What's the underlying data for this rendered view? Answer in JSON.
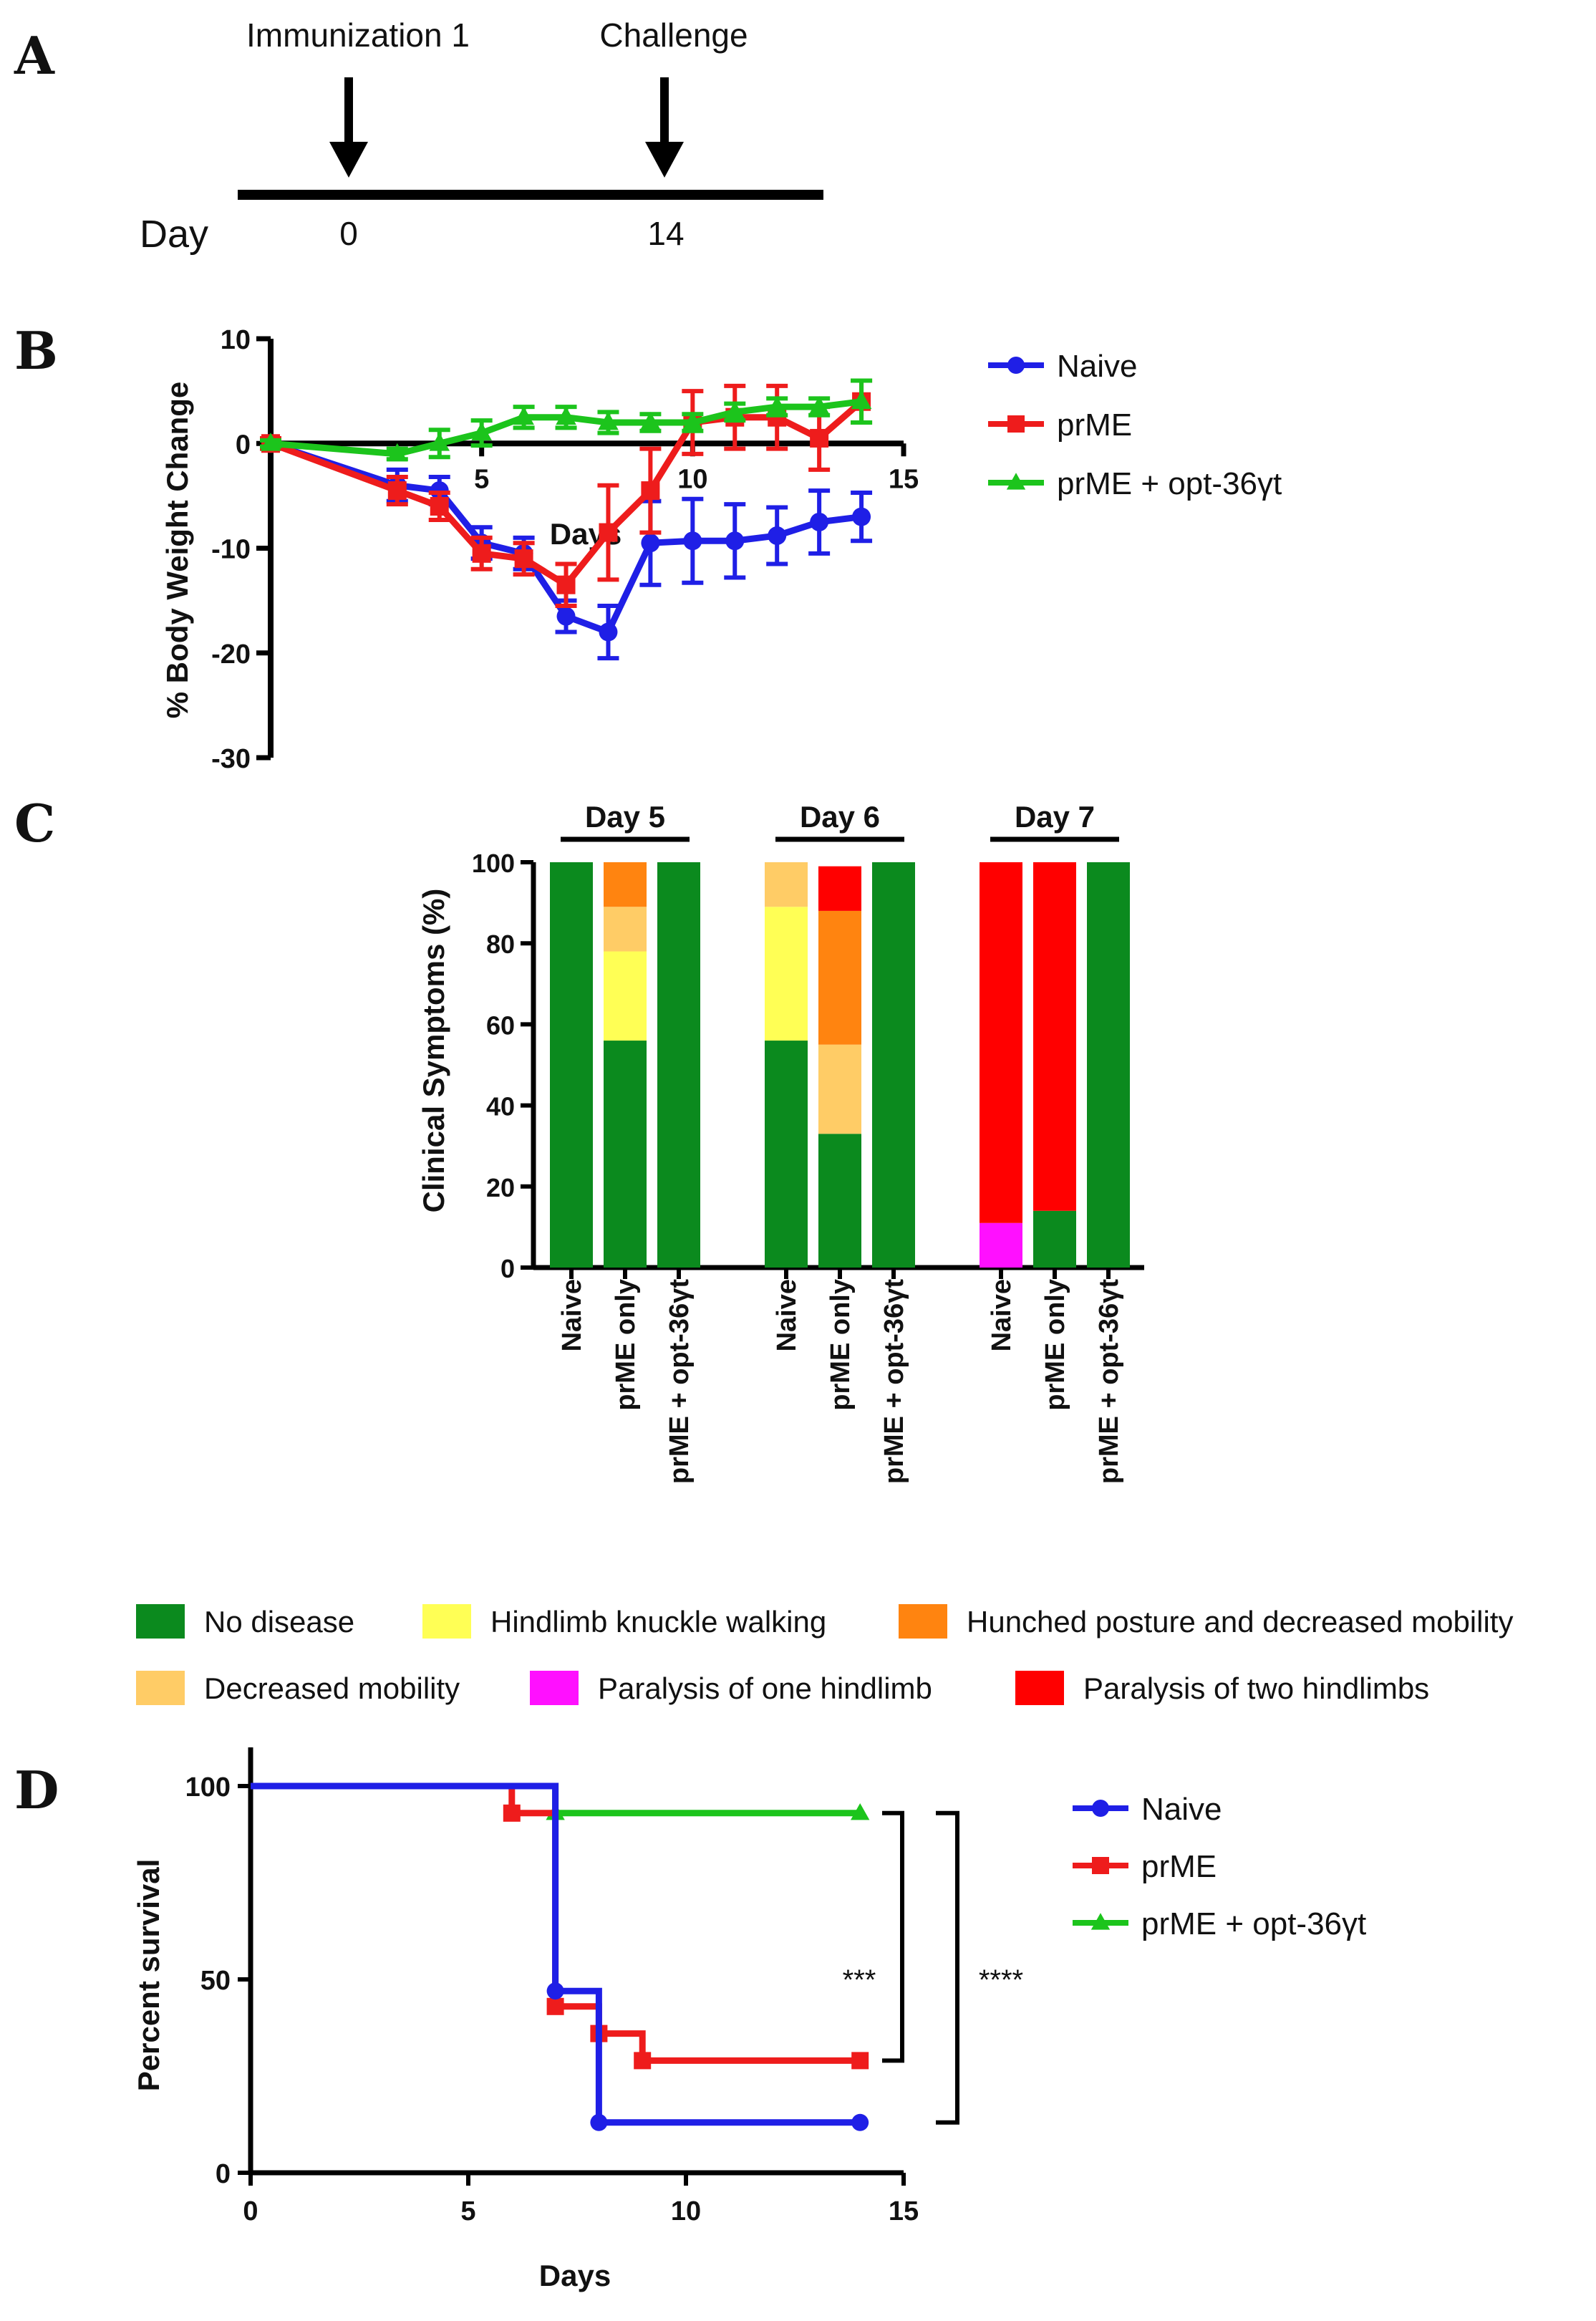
{
  "panel_letters": {
    "a": "A",
    "b": "B",
    "c": "C",
    "d": "D"
  },
  "colors": {
    "naive": "#1f1fe6",
    "prme": "#ee1c1c",
    "opt": "#1cc41c",
    "no_disease": "#0b8a1e",
    "knuckle": "#ffff55",
    "hunched": "#ff8410",
    "decreased": "#ffcc66",
    "para_one": "#ff10ff",
    "para_two": "#ff0000",
    "axis": "#000000"
  },
  "chart_data": [
    {
      "panel": "A",
      "type": "timeline",
      "row_label": "Day",
      "events": [
        {
          "label": "Immunization 1",
          "day": 0,
          "day_label": "0"
        },
        {
          "label": "Challenge",
          "day": 14,
          "day_label": "14"
        }
      ]
    },
    {
      "panel": "B",
      "type": "line",
      "xlabel": "Days",
      "ylabel": "% Body Weight Change",
      "xlim": [
        0,
        15
      ],
      "ylim": [
        -30,
        10
      ],
      "xticks": [
        5,
        10,
        15
      ],
      "yticks": [
        10,
        0,
        -10,
        -20,
        -30
      ],
      "legend_position": "right",
      "series": [
        {
          "name": "Naive",
          "key": "naive",
          "marker": "circle",
          "x": [
            0,
            3,
            4,
            5,
            6,
            7,
            8,
            9,
            10,
            11,
            12,
            13,
            14
          ],
          "y": [
            0,
            -4,
            -4.5,
            -9.5,
            -10.5,
            -16.5,
            -18,
            -9.5,
            -9.3,
            -9.3,
            -8.8,
            -7.5,
            -7
          ],
          "err": [
            0.5,
            1.5,
            1.3,
            1.5,
            1.5,
            1.5,
            2.5,
            4,
            4,
            3.5,
            2.7,
            3,
            2.3
          ]
        },
        {
          "name": "prME",
          "key": "prme",
          "marker": "square",
          "x": [
            0,
            3,
            4,
            5,
            6,
            7,
            8,
            9,
            10,
            11,
            12,
            13,
            14
          ],
          "y": [
            0,
            -4.5,
            -6,
            -10.5,
            -11,
            -13.5,
            -8.5,
            -4.5,
            2,
            2.5,
            2.5,
            0.5,
            4
          ],
          "err": [
            0.5,
            1.3,
            1.3,
            1.5,
            1.5,
            2,
            4.5,
            4,
            3,
            3,
            3,
            3,
            2
          ]
        },
        {
          "name": "prME + opt-36γt",
          "key": "opt",
          "marker": "triangle",
          "x": [
            0,
            3,
            4,
            5,
            6,
            7,
            8,
            9,
            10,
            11,
            12,
            13,
            14
          ],
          "y": [
            0,
            -1,
            0,
            1,
            2.5,
            2.5,
            2,
            2,
            2,
            3,
            3.5,
            3.5,
            4
          ],
          "err": [
            0.3,
            0.5,
            1.3,
            1.2,
            1,
            1,
            1,
            0.8,
            0.8,
            0.8,
            0.8,
            0.8,
            2
          ]
        }
      ]
    },
    {
      "panel": "C",
      "type": "bar",
      "stacked": true,
      "ylabel": "Clinical Symptoms (%)",
      "ylim": [
        0,
        100
      ],
      "yticks": [
        0,
        20,
        40,
        60,
        80,
        100
      ],
      "legend_position": "bottom",
      "categories_legend": [
        {
          "key": "no_disease",
          "label": "No disease"
        },
        {
          "key": "knuckle",
          "label": "Hindlimb knuckle walking"
        },
        {
          "key": "hunched",
          "label": "Hunched posture and decreased mobility"
        },
        {
          "key": "decreased",
          "label": "Decreased mobility"
        },
        {
          "key": "para_one",
          "label": "Paralysis of one hindlimb"
        },
        {
          "key": "para_two",
          "label": "Paralysis of two hindlimbs"
        }
      ],
      "groups": [
        {
          "title": "Day 5",
          "bars": [
            {
              "label": "Naive",
              "segments": [
                {
                  "key": "no_disease",
                  "value": 100
                }
              ]
            },
            {
              "label": "prME only",
              "segments": [
                {
                  "key": "no_disease",
                  "value": 56
                },
                {
                  "key": "knuckle",
                  "value": 22
                },
                {
                  "key": "decreased",
                  "value": 11
                },
                {
                  "key": "hunched",
                  "value": 11
                }
              ]
            },
            {
              "label": "prME + opt-36γt",
              "segments": [
                {
                  "key": "no_disease",
                  "value": 100
                }
              ]
            }
          ]
        },
        {
          "title": "Day 6",
          "bars": [
            {
              "label": "Naive",
              "segments": [
                {
                  "key": "no_disease",
                  "value": 56
                },
                {
                  "key": "knuckle",
                  "value": 33
                },
                {
                  "key": "decreased",
                  "value": 11
                }
              ]
            },
            {
              "label": "prME only",
              "segments": [
                {
                  "key": "no_disease",
                  "value": 33
                },
                {
                  "key": "decreased",
                  "value": 22
                },
                {
                  "key": "hunched",
                  "value": 33
                },
                {
                  "key": "para_two",
                  "value": 11
                }
              ]
            },
            {
              "label": "prME + opt-36γt",
              "segments": [
                {
                  "key": "no_disease",
                  "value": 100
                }
              ]
            }
          ]
        },
        {
          "title": "Day 7",
          "bars": [
            {
              "label": "Naive",
              "segments": [
                {
                  "key": "para_one",
                  "value": 11
                },
                {
                  "key": "para_two",
                  "value": 89
                }
              ]
            },
            {
              "label": "prME only",
              "segments": [
                {
                  "key": "no_disease",
                  "value": 14
                },
                {
                  "key": "para_two",
                  "value": 86
                }
              ]
            },
            {
              "label": "prME + opt-36γt",
              "segments": [
                {
                  "key": "no_disease",
                  "value": 100
                }
              ]
            }
          ]
        }
      ]
    },
    {
      "panel": "D",
      "type": "line",
      "subtype": "survival-step",
      "xlabel": "Days",
      "ylabel": "Percent survival",
      "xlim": [
        0,
        15
      ],
      "ylim": [
        0,
        110
      ],
      "xticks": [
        0,
        5,
        10,
        15
      ],
      "yticks": [
        0,
        50,
        100
      ],
      "legend_position": "right",
      "series": [
        {
          "name": "Naive",
          "key": "naive",
          "marker": "circle",
          "steps": [
            [
              0,
              100
            ],
            [
              7,
              47
            ],
            [
              8,
              13
            ],
            [
              14,
              13
            ]
          ],
          "markers": [
            [
              7,
              47
            ],
            [
              8,
              13
            ],
            [
              14,
              13
            ]
          ]
        },
        {
          "name": "prME",
          "key": "prme",
          "marker": "square",
          "steps": [
            [
              0,
              100
            ],
            [
              6,
              93
            ],
            [
              7,
              43
            ],
            [
              8,
              36
            ],
            [
              9,
              29
            ],
            [
              14,
              29
            ]
          ],
          "markers": [
            [
              6,
              93
            ],
            [
              7,
              43
            ],
            [
              8,
              36
            ],
            [
              9,
              29
            ],
            [
              14,
              29
            ]
          ]
        },
        {
          "name": "prME + opt-36γt",
          "key": "opt",
          "marker": "triangle",
          "steps": [
            [
              0,
              100
            ],
            [
              7,
              93
            ],
            [
              14,
              93
            ]
          ],
          "markers": [
            [
              7,
              93
            ],
            [
              14,
              93
            ]
          ]
        }
      ],
      "annotations": [
        {
          "text": "***",
          "between": [
            "prME + opt-36γt",
            "prME"
          ]
        },
        {
          "text": "****",
          "between": [
            "prME + opt-36γt",
            "Naive"
          ]
        }
      ]
    }
  ]
}
